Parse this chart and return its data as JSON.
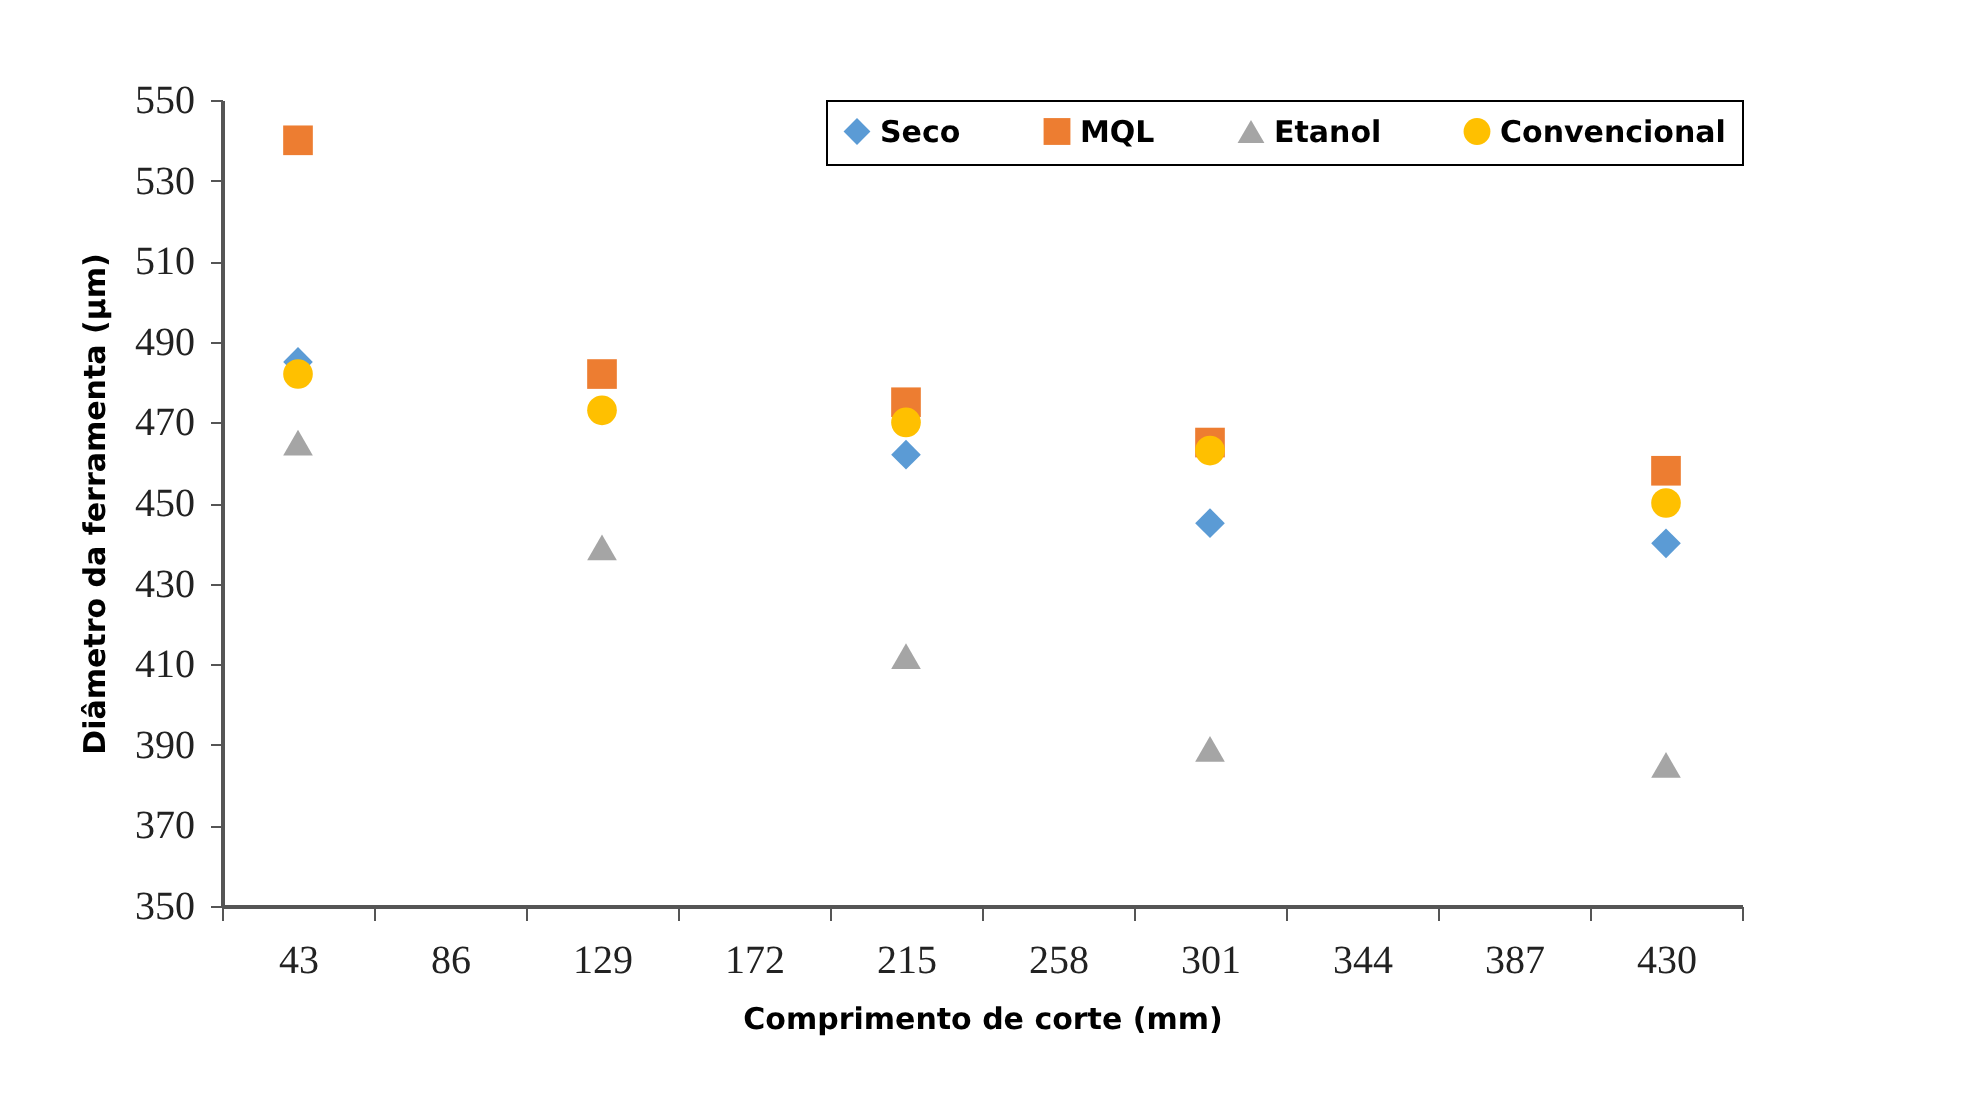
{
  "chart_data": {
    "type": "scatter",
    "xlabel": "Comprimento de corte (mm)",
    "ylabel": "Diâmetro da ferramenta (µm)",
    "categories": [
      "43",
      "86",
      "129",
      "172",
      "215",
      "258",
      "301",
      "344",
      "387",
      "430"
    ],
    "ylim": [
      350,
      550
    ],
    "yticks": [
      350,
      370,
      390,
      410,
      430,
      450,
      470,
      490,
      510,
      530,
      550
    ],
    "legend": "top right",
    "grid": false,
    "series": [
      {
        "name": "Seco",
        "color": "#5b9bd5",
        "marker": "diamond",
        "values": [
          485,
          null,
          null,
          null,
          462,
          null,
          445,
          null,
          null,
          440
        ]
      },
      {
        "name": "MQL",
        "color": "#ed7d31",
        "marker": "square",
        "values": [
          540,
          null,
          482,
          null,
          475,
          null,
          465,
          null,
          null,
          458
        ]
      },
      {
        "name": "Etanol",
        "color": "#a5a5a5",
        "marker": "triangle",
        "values": [
          465,
          null,
          439,
          null,
          412,
          null,
          389,
          null,
          null,
          385
        ]
      },
      {
        "name": "Convencional",
        "color": "#ffc000",
        "marker": "circle",
        "values": [
          482,
          null,
          473,
          null,
          470,
          null,
          463,
          null,
          null,
          450
        ]
      }
    ]
  }
}
